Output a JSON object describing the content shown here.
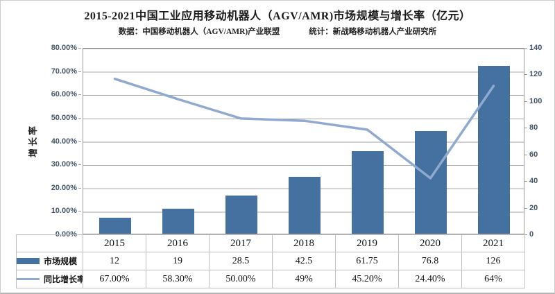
{
  "chart_data": {
    "type": "bar+line",
    "title": "2015-2021中国工业应用移动机器人（AGV/AMR)市场规模与增长率（亿元）",
    "source_note": "数据：中国移动机器人（AGV/AMR)产业联盟",
    "stat_note": "统计：新战略移动机器人产业研究所",
    "categories": [
      "2015",
      "2016",
      "2017",
      "2018",
      "2019",
      "2020",
      "2021"
    ],
    "series": [
      {
        "name": "市场规模",
        "type": "bar",
        "axis": "right",
        "color": "#44719F",
        "values": [
          12,
          19,
          28.5,
          42.5,
          61.75,
          76.8,
          126
        ]
      },
      {
        "name": "同比增长率",
        "type": "line",
        "axis": "left",
        "color": "#8FA9D0",
        "values_pct": [
          67.0,
          58.3,
          50.0,
          49.0,
          45.2,
          24.4,
          64.0
        ],
        "labels": [
          "67.00%",
          "58.30%",
          "50.00%",
          "49%",
          "45.20%",
          "24.40%",
          "64%"
        ]
      }
    ],
    "left_axis": {
      "title": "增长率",
      "min": 0,
      "max": 80,
      "ticks": [
        "80.00%",
        "70.00%",
        "60.00%",
        "50.00%",
        "40.00%",
        "30.00%",
        "20.00%",
        "10.00%",
        "0.00%"
      ]
    },
    "right_axis": {
      "min": 0,
      "max": 140,
      "ticks": [
        "140",
        "120",
        "100",
        "80",
        "60",
        "40",
        "20",
        "0"
      ]
    },
    "grid": true,
    "legend_position": "bottom-table",
    "colors": {
      "bar": "#44719F",
      "line": "#8FA9D0",
      "axis_text": "#44546A",
      "gridline": "#A6A6A6",
      "table_border": "#BFBFBF"
    }
  }
}
